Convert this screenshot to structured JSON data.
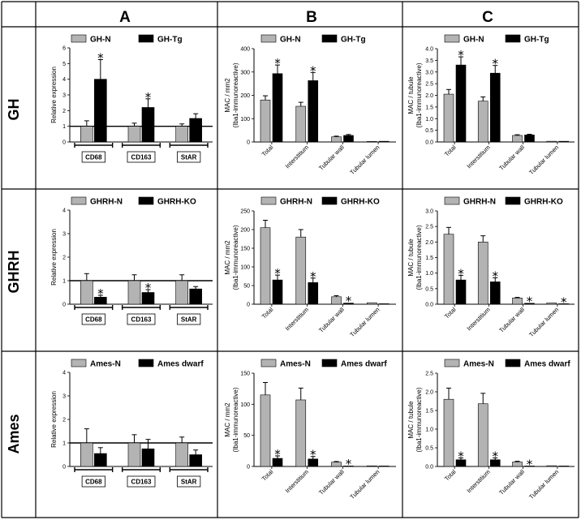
{
  "columns": [
    "A",
    "B",
    "C"
  ],
  "rows": [
    "GH",
    "GHRH",
    "Ames"
  ],
  "colors": {
    "control": "#b3b3b3",
    "treated": "#000000",
    "grid": "#000000"
  },
  "chart_data": [
    {
      "type": "bar",
      "panel": "GH-A",
      "categories": [
        "CD68",
        "CD163",
        "StAR"
      ],
      "series": [
        {
          "name": "GH-N",
          "values": [
            1.0,
            1.0,
            1.0
          ],
          "errors": [
            0.35,
            0.2,
            0.15
          ]
        },
        {
          "name": "GH-Tg",
          "values": [
            4.0,
            2.2,
            1.5
          ],
          "errors": [
            1.25,
            0.55,
            0.3
          ]
        }
      ],
      "significant": [
        true,
        true,
        false
      ],
      "ylabel": "Relative expression",
      "ylim": [
        0,
        6
      ],
      "yticks": [
        0,
        1,
        2,
        3,
        4,
        5,
        6
      ],
      "reference_line": 1
    },
    {
      "type": "bar",
      "panel": "GH-B",
      "categories": [
        "Total",
        "Interstitium",
        "Tubular wall",
        "Tubular lumen"
      ],
      "series": [
        {
          "name": "GH-N",
          "values": [
            180,
            153,
            22,
            2
          ],
          "errors": [
            18,
            17,
            3,
            1
          ]
        },
        {
          "name": "GH-Tg",
          "values": [
            293,
            263,
            28,
            3
          ],
          "errors": [
            37,
            35,
            4,
            1
          ]
        }
      ],
      "significant": [
        true,
        true,
        false,
        false
      ],
      "ylabel": "MAC / mm2",
      "ylabel2": "(Iba1-immunoreactive)",
      "ylim": [
        0,
        400
      ],
      "yticks": [
        0,
        100,
        200,
        300,
        400
      ]
    },
    {
      "type": "bar",
      "panel": "GH-C",
      "categories": [
        "Total",
        "Interstitium",
        "Tubular wall",
        "Tubular lumen"
      ],
      "series": [
        {
          "name": "GH-N",
          "values": [
            2.05,
            1.75,
            0.28,
            0.03
          ],
          "errors": [
            0.2,
            0.18,
            0.03,
            0.01
          ]
        },
        {
          "name": "GH-Tg",
          "values": [
            3.3,
            2.95,
            0.3,
            0.03
          ],
          "errors": [
            0.35,
            0.33,
            0.03,
            0.01
          ]
        }
      ],
      "significant": [
        true,
        true,
        false,
        false
      ],
      "ylabel": "MAC / tubule",
      "ylabel2": "(Iba1-immunoreactive)",
      "ylim": [
        0,
        4
      ],
      "yticks": [
        0.0,
        0.5,
        1.0,
        1.5,
        2.0,
        2.5,
        3.0,
        3.5,
        4.0
      ]
    },
    {
      "type": "bar",
      "panel": "GHRH-A",
      "categories": [
        "CD68",
        "CD163",
        "StAR"
      ],
      "series": [
        {
          "name": "GHRH-N",
          "values": [
            1.0,
            1.0,
            1.0
          ],
          "errors": [
            0.3,
            0.25,
            0.25
          ]
        },
        {
          "name": "GHRH-KO",
          "values": [
            0.3,
            0.5,
            0.65
          ],
          "errors": [
            0.08,
            0.12,
            0.1
          ]
        }
      ],
      "significant": [
        true,
        true,
        false
      ],
      "ylabel": "Relative expression",
      "ylim": [
        0,
        4
      ],
      "yticks": [
        0,
        1,
        2,
        3,
        4
      ],
      "reference_line": 1
    },
    {
      "type": "bar",
      "panel": "GHRH-B",
      "categories": [
        "Total",
        "Interstitium",
        "Tubular wall",
        "Tubular lumen"
      ],
      "series": [
        {
          "name": "GHRH-N",
          "values": [
            205,
            180,
            20,
            4
          ],
          "errors": [
            20,
            20,
            3,
            1
          ]
        },
        {
          "name": "GHRH-KO",
          "values": [
            65,
            58,
            3,
            1
          ],
          "errors": [
            13,
            12,
            1,
            0.5
          ]
        }
      ],
      "significant": [
        true,
        true,
        true,
        false
      ],
      "ylabel": "MAC / mm2",
      "ylabel2": "(Iba1-immunoreactive)",
      "ylim": [
        0,
        250
      ],
      "yticks": [
        0,
        50,
        100,
        150,
        200,
        250
      ]
    },
    {
      "type": "bar",
      "panel": "GHRH-C",
      "categories": [
        "Total",
        "Interstitium",
        "Tubular wall",
        "Tubular lumen"
      ],
      "series": [
        {
          "name": "GHRH-N",
          "values": [
            2.25,
            2.0,
            0.2,
            0.04
          ],
          "errors": [
            0.22,
            0.2,
            0.02,
            0.01
          ]
        },
        {
          "name": "GHRH-KO",
          "values": [
            0.78,
            0.72,
            0.03,
            0.01
          ],
          "errors": [
            0.15,
            0.13,
            0.01,
            0.005
          ]
        }
      ],
      "significant": [
        true,
        true,
        true,
        true
      ],
      "ylabel": "MAC / tubule",
      "ylabel2": "(Iba1-immunoreactive)",
      "ylim": [
        0,
        3
      ],
      "yticks": [
        0.0,
        0.5,
        1.0,
        1.5,
        2.0,
        2.5,
        3.0
      ]
    },
    {
      "type": "bar",
      "panel": "Ames-A",
      "categories": [
        "CD68",
        "CD163",
        "StAR"
      ],
      "series": [
        {
          "name": "Ames-N",
          "values": [
            1.0,
            1.0,
            1.0
          ],
          "errors": [
            0.6,
            0.35,
            0.25
          ]
        },
        {
          "name": "Ames dwarf",
          "values": [
            0.55,
            0.75,
            0.5
          ],
          "errors": [
            0.25,
            0.4,
            0.2
          ]
        }
      ],
      "significant": [
        false,
        false,
        false
      ],
      "ylabel": "Relative expression",
      "ylim": [
        0,
        4
      ],
      "yticks": [
        0,
        1,
        2,
        3,
        4
      ],
      "reference_line": 1
    },
    {
      "type": "bar",
      "panel": "Ames-B",
      "categories": [
        "Total",
        "Interstitium",
        "Tubular wall",
        "Tubular lumen"
      ],
      "series": [
        {
          "name": "Ames-N",
          "values": [
            115,
            107,
            7,
            1
          ],
          "errors": [
            20,
            19,
            1,
            0.5
          ]
        },
        {
          "name": "Ames dwarf",
          "values": [
            13,
            12,
            0.8,
            0.3
          ],
          "errors": [
            4,
            4,
            0.3,
            0.2
          ]
        }
      ],
      "significant": [
        true,
        true,
        true,
        false
      ],
      "ylabel": "MAC / mm2",
      "ylabel2": "(Iba1-immunoreactive)",
      "ylim": [
        0,
        150
      ],
      "yticks": [
        0,
        50,
        100,
        150
      ]
    },
    {
      "type": "bar",
      "panel": "Ames-C",
      "categories": [
        "Total",
        "Interstitium",
        "Tubular wall",
        "Tubular lumen"
      ],
      "series": [
        {
          "name": "Ames-N",
          "values": [
            1.8,
            1.68,
            0.12,
            0.02
          ],
          "errors": [
            0.3,
            0.28,
            0.02,
            0.01
          ]
        },
        {
          "name": "Ames dwarf",
          "values": [
            0.18,
            0.18,
            0.01,
            0.005
          ],
          "errors": [
            0.05,
            0.05,
            0.005,
            0.003
          ]
        }
      ],
      "significant": [
        true,
        true,
        true,
        false
      ],
      "ylabel": "MAC / tubule",
      "ylabel2": "(Iba1-immunoreactive)",
      "ylim": [
        0,
        2.5
      ],
      "yticks": [
        0.0,
        0.5,
        1.0,
        1.5,
        2.0,
        2.5
      ]
    }
  ]
}
